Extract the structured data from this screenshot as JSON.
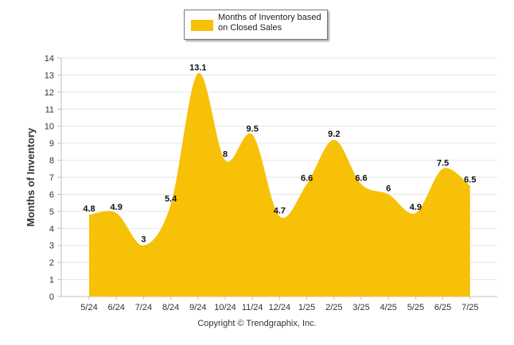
{
  "chart_data": {
    "type": "area",
    "categories": [
      "5/24",
      "6/24",
      "7/24",
      "8/24",
      "9/24",
      "10/24",
      "11/24",
      "12/24",
      "1/25",
      "2/25",
      "3/25",
      "4/25",
      "5/25",
      "6/25",
      "7/25"
    ],
    "series": [
      {
        "name": "Months of Inventory based on Closed Sales",
        "values": [
          4.8,
          4.9,
          3,
          5.4,
          13.1,
          8,
          9.5,
          4.7,
          6.6,
          9.2,
          6.6,
          6,
          4.9,
          7.5,
          6.5
        ],
        "labels": [
          "4.8",
          "4.9",
          "3",
          "5.4",
          "13.1",
          "8",
          "9.5",
          "4.7",
          "6.6",
          "9.2",
          "6.6",
          "6",
          "4.9",
          "7.5",
          "6.5"
        ]
      }
    ],
    "ylabel": "Months of Inventory",
    "xlabel": "",
    "ylim": [
      0,
      14
    ],
    "yticks": [
      "0",
      "1",
      "2",
      "3",
      "4",
      "5",
      "6",
      "7",
      "8",
      "9",
      "10",
      "11",
      "12",
      "13",
      "14"
    ],
    "grid": true,
    "legend_position": "top-center",
    "colors": {
      "area": "#F7C108",
      "grid": "#e6e6e6",
      "axis": "#c0c0c0"
    }
  },
  "legend": {
    "label": "Months of Inventory based on Closed Sales"
  },
  "footer": {
    "copyright": "Copyright © Trendgraphix, Inc."
  }
}
